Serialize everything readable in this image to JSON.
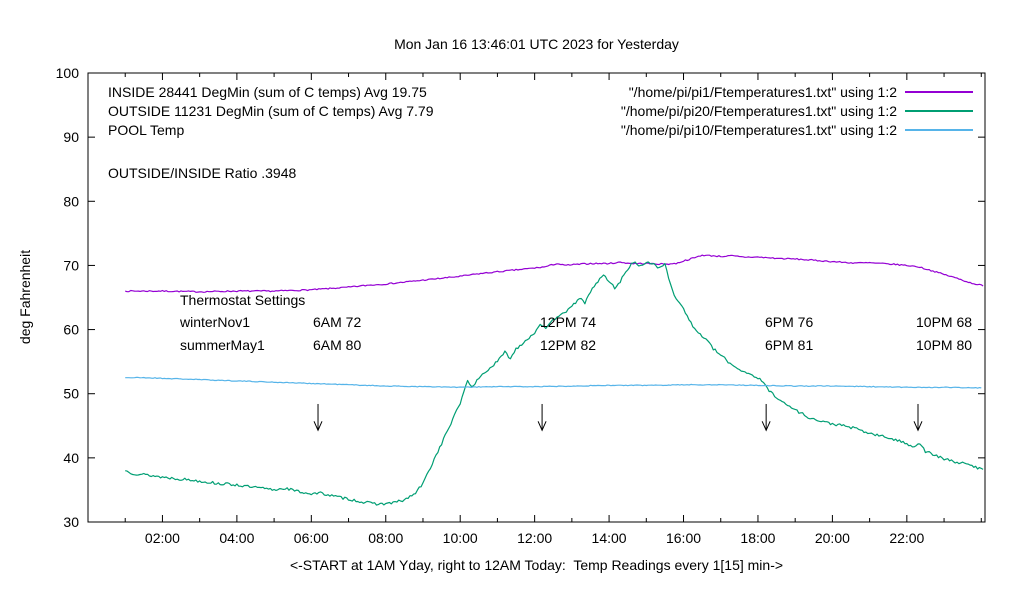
{
  "title": "Mon Jan 16 13:46:01 UTC 2023 for Yesterday",
  "ylabel": "deg Fahrenheit",
  "xlabel": "<-START at 1AM Yday, right to 12AM Today:  Temp Readings every 1[15] min->",
  "ratio_label": "OUTSIDE/INSIDE Ratio .3948",
  "legend": [
    {
      "label": "INSIDE 28441 DegMin (sum of C temps) Avg 19.75",
      "file": "\"/home/pi/pi1/Ftemperatures1.txt\" using 1:2",
      "color": "#9400D3"
    },
    {
      "label": "OUTSIDE 11231 DegMin (sum of C temps) Avg 7.79",
      "file": "\"/home/pi/pi20/Ftemperatures1.txt\" using 1:2",
      "color": "#009E73"
    },
    {
      "label": "POOL Temp",
      "file": "\"/home/pi/pi10/Ftemperatures1.txt\" using 1:2",
      "color": "#56B4E9"
    }
  ],
  "thermostat": {
    "heading": "Thermostat Settings",
    "rows": [
      {
        "name": "winterNov1",
        "cols": [
          "6AM 72",
          "12PM 74",
          "6PM 76",
          "10PM 68"
        ]
      },
      {
        "name": "summerMay1",
        "cols": [
          "6AM 80",
          "12PM 82",
          "6PM 81",
          "10PM 80"
        ]
      }
    ]
  },
  "chart_data": {
    "type": "line",
    "xlim": [
      0,
      24.1
    ],
    "ylim": [
      30,
      100
    ],
    "y_ticks": [
      30,
      40,
      50,
      60,
      70,
      80,
      90,
      100
    ],
    "x_ticks": [
      {
        "t": 2,
        "label": "02:00"
      },
      {
        "t": 4,
        "label": "04:00"
      },
      {
        "t": 6,
        "label": "06:00"
      },
      {
        "t": 8,
        "label": "08:00"
      },
      {
        "t": 10,
        "label": "10:00"
      },
      {
        "t": 12,
        "label": "12:00"
      },
      {
        "t": 14,
        "label": "14:00"
      },
      {
        "t": 16,
        "label": "16:00"
      },
      {
        "t": 18,
        "label": "18:00"
      },
      {
        "t": 20,
        "label": "20:00"
      },
      {
        "t": 22,
        "label": "22:00"
      }
    ],
    "arrows": {
      "x_hours": [
        6.18,
        12.2,
        18.22,
        22.3
      ],
      "y_top": 48.4,
      "y_bottom": 44.3
    },
    "series": [
      {
        "name": "INSIDE",
        "color": "#9400D3",
        "noise": 0.1,
        "seed": 7,
        "points": [
          [
            1,
            66
          ],
          [
            2,
            66
          ],
          [
            3,
            65.9
          ],
          [
            4,
            66
          ],
          [
            5,
            66
          ],
          [
            5.5,
            66.1
          ],
          [
            6,
            66.2
          ],
          [
            6.5,
            66.4
          ],
          [
            7,
            66.6
          ],
          [
            7.5,
            66.9
          ],
          [
            8,
            67.1
          ],
          [
            8.5,
            67.4
          ],
          [
            9,
            67.7
          ],
          [
            9.5,
            68
          ],
          [
            10,
            68.3
          ],
          [
            10.5,
            68.7
          ],
          [
            11,
            69
          ],
          [
            11.5,
            69.3
          ],
          [
            12,
            69.6
          ],
          [
            12.3,
            69.8
          ],
          [
            12.6,
            70.3
          ],
          [
            12.8,
            70
          ],
          [
            13,
            70.1
          ],
          [
            13.5,
            70.3
          ],
          [
            14,
            70.3
          ],
          [
            14.3,
            70.5
          ],
          [
            14.6,
            70.3
          ],
          [
            15,
            70.3
          ],
          [
            15.5,
            70.2
          ],
          [
            15.8,
            70.3
          ],
          [
            16,
            70.7
          ],
          [
            16.3,
            71.2
          ],
          [
            16.5,
            71.6
          ],
          [
            16.8,
            71.5
          ],
          [
            17,
            71.4
          ],
          [
            17.3,
            71.5
          ],
          [
            17.6,
            71.3
          ],
          [
            18,
            71.3
          ],
          [
            18.5,
            71.1
          ],
          [
            19,
            71
          ],
          [
            19.5,
            70.8
          ],
          [
            20,
            70.6
          ],
          [
            20.5,
            70.4
          ],
          [
            21,
            70.4
          ],
          [
            21.3,
            70.3
          ],
          [
            21.6,
            70.2
          ],
          [
            22,
            70
          ],
          [
            22.3,
            69.8
          ],
          [
            22.6,
            69.3
          ],
          [
            23,
            68.6
          ],
          [
            23.4,
            67.9
          ],
          [
            23.7,
            67.3
          ],
          [
            24,
            66.9
          ],
          [
            24.05,
            66.8
          ]
        ]
      },
      {
        "name": "OUTSIDE",
        "color": "#009E73",
        "noise": 0.22,
        "seed": 13,
        "points": [
          [
            1,
            38
          ],
          [
            1.2,
            37.6
          ],
          [
            1.5,
            37.4
          ],
          [
            2,
            37
          ],
          [
            2.5,
            36.7
          ],
          [
            3,
            36.4
          ],
          [
            3.5,
            36
          ],
          [
            4,
            35.8
          ],
          [
            4.3,
            35.5
          ],
          [
            4.6,
            35.3
          ],
          [
            5,
            35
          ],
          [
            5.3,
            35.3
          ],
          [
            5.6,
            34.8
          ],
          [
            6,
            34.4
          ],
          [
            6.3,
            34.5
          ],
          [
            6.6,
            34
          ],
          [
            7,
            33.6
          ],
          [
            7.3,
            33.2
          ],
          [
            7.6,
            32.9
          ],
          [
            7.9,
            32.8
          ],
          [
            8.2,
            33
          ],
          [
            8.5,
            33.4
          ],
          [
            8.8,
            34.5
          ],
          [
            9,
            36
          ],
          [
            9.2,
            38.5
          ],
          [
            9.4,
            41
          ],
          [
            9.6,
            43.5
          ],
          [
            9.8,
            46
          ],
          [
            10,
            48.5
          ],
          [
            10.1,
            50.5
          ],
          [
            10.2,
            52
          ],
          [
            10.35,
            51
          ],
          [
            10.5,
            52.5
          ],
          [
            10.7,
            53.5
          ],
          [
            10.9,
            54.5
          ],
          [
            11,
            55
          ],
          [
            11.2,
            56.5
          ],
          [
            11.35,
            55.5
          ],
          [
            11.5,
            57
          ],
          [
            11.7,
            58
          ],
          [
            11.9,
            59
          ],
          [
            12,
            59.5
          ],
          [
            12.15,
            61
          ],
          [
            12.3,
            60
          ],
          [
            12.5,
            61.5
          ],
          [
            12.7,
            62.5
          ],
          [
            12.9,
            63
          ],
          [
            13,
            63.5
          ],
          [
            13.2,
            65
          ],
          [
            13.35,
            64
          ],
          [
            13.5,
            66
          ],
          [
            13.7,
            67.5
          ],
          [
            13.85,
            68.5
          ],
          [
            14,
            67.5
          ],
          [
            14.15,
            66.5
          ],
          [
            14.3,
            67.5
          ],
          [
            14.5,
            69.5
          ],
          [
            14.65,
            70.5
          ],
          [
            14.8,
            70
          ],
          [
            15,
            70.3
          ],
          [
            15.2,
            70.4
          ],
          [
            15.35,
            69.5
          ],
          [
            15.5,
            70.2
          ],
          [
            15.6,
            68
          ],
          [
            15.75,
            65.5
          ],
          [
            15.9,
            64
          ],
          [
            16,
            63.5
          ],
          [
            16.1,
            62
          ],
          [
            16.25,
            60.5
          ],
          [
            16.4,
            59.5
          ],
          [
            16.6,
            58.5
          ],
          [
            16.8,
            57
          ],
          [
            17,
            56
          ],
          [
            17.3,
            54.5
          ],
          [
            17.6,
            53.5
          ],
          [
            17.9,
            52.8
          ],
          [
            18.1,
            52
          ],
          [
            18.3,
            50.5
          ],
          [
            18.5,
            49.5
          ],
          [
            18.7,
            48.5
          ],
          [
            19,
            47.5
          ],
          [
            19.3,
            46.5
          ],
          [
            19.6,
            45.8
          ],
          [
            20,
            45.3
          ],
          [
            20.3,
            45
          ],
          [
            20.6,
            44.6
          ],
          [
            21,
            43.8
          ],
          [
            21.3,
            43.4
          ],
          [
            21.6,
            43
          ],
          [
            22,
            42.2
          ],
          [
            22.2,
            41.8
          ],
          [
            22.35,
            42.3
          ],
          [
            22.5,
            41
          ],
          [
            22.8,
            40.3
          ],
          [
            23,
            39.8
          ],
          [
            23.3,
            39.4
          ],
          [
            23.6,
            39
          ],
          [
            24,
            38.3
          ],
          [
            24.05,
            38.2
          ]
        ]
      },
      {
        "name": "POOL",
        "color": "#56B4E9",
        "noise": 0.06,
        "seed": 21,
        "points": [
          [
            1,
            52.5
          ],
          [
            1.5,
            52.5
          ],
          [
            2,
            52.4
          ],
          [
            2.5,
            52.3
          ],
          [
            3,
            52.2
          ],
          [
            3.5,
            52.1
          ],
          [
            4,
            52
          ],
          [
            4.5,
            51.9
          ],
          [
            5,
            51.8
          ],
          [
            5.5,
            51.7
          ],
          [
            6,
            51.6
          ],
          [
            6.5,
            51.5
          ],
          [
            7,
            51.4
          ],
          [
            7.5,
            51.3
          ],
          [
            8,
            51.2
          ],
          [
            9,
            51.1
          ],
          [
            10,
            51
          ],
          [
            11,
            51.1
          ],
          [
            12,
            51.1
          ],
          [
            13,
            51.2
          ],
          [
            14,
            51.3
          ],
          [
            15,
            51.3
          ],
          [
            16,
            51.4
          ],
          [
            17,
            51.4
          ],
          [
            18,
            51.3
          ],
          [
            19,
            51.2
          ],
          [
            20,
            51.2
          ],
          [
            21,
            51.1
          ],
          [
            22,
            51
          ],
          [
            23,
            51
          ],
          [
            24,
            50.9
          ]
        ]
      }
    ]
  }
}
